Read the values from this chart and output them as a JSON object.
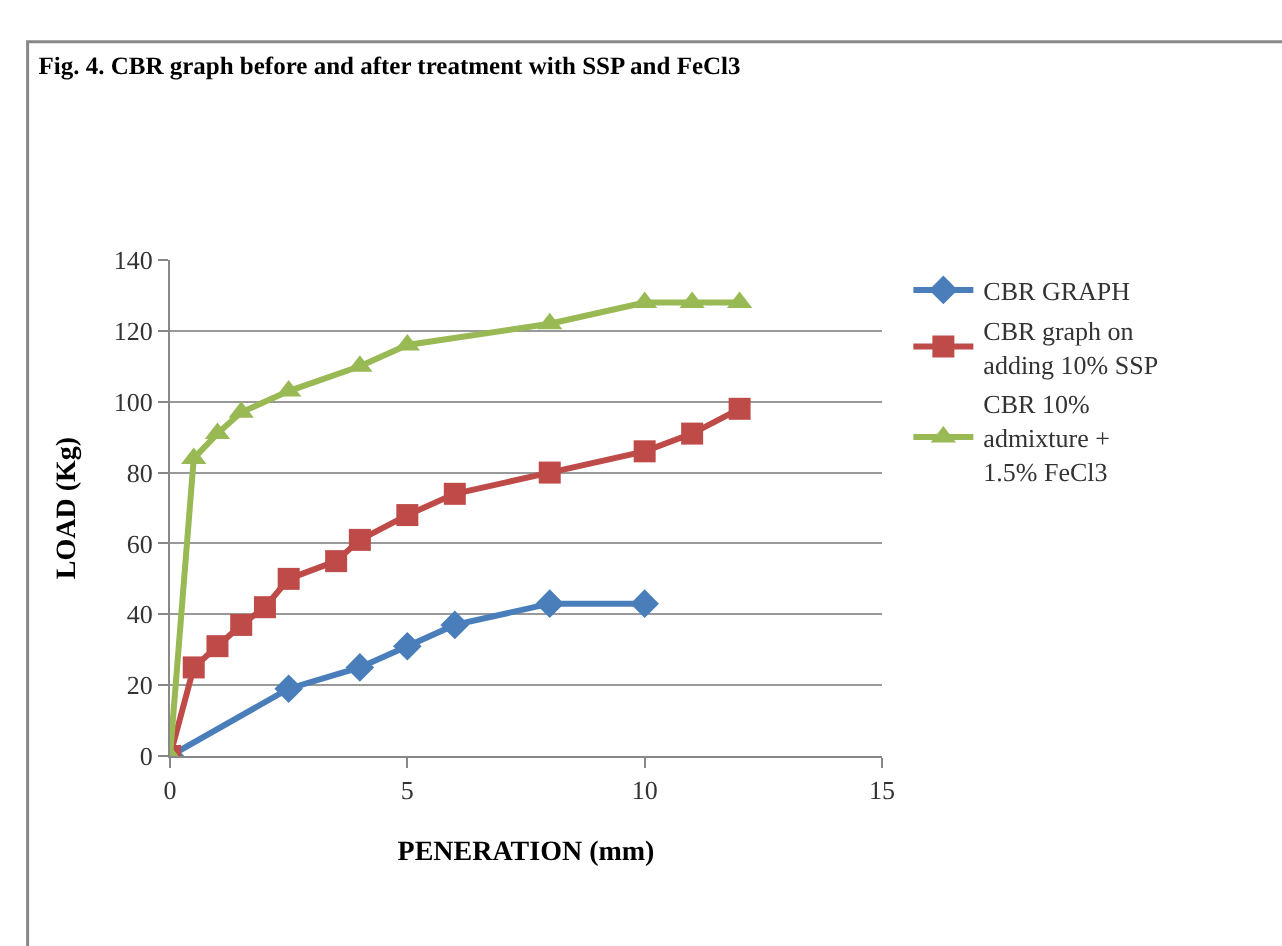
{
  "chart_data": {
    "type": "line",
    "title": "Fig. 4. CBR graph before and after treatment with SSP and FeCl3",
    "xlabel": "PENERATION (mm)",
    "ylabel": "LOAD (Kg)",
    "xlim": [
      0,
      15
    ],
    "xticks": [
      0,
      5,
      10,
      15
    ],
    "ylim": [
      0,
      140
    ],
    "yticks": [
      0,
      20,
      40,
      60,
      80,
      100,
      120,
      140
    ],
    "grid": "y",
    "legend": "right",
    "series": [
      {
        "name": "CBR GRAPH",
        "color": "#4a7ebb",
        "marker": "diamond",
        "x": [
          0,
          2.5,
          4,
          5,
          6,
          8,
          10
        ],
        "values": [
          0,
          19,
          25,
          31,
          37,
          43,
          43
        ]
      },
      {
        "name": "CBR graph on adding 10% SSP",
        "color": "#be4b48",
        "marker": "square",
        "x": [
          0,
          0.5,
          1,
          1.5,
          2,
          2.5,
          3.5,
          4,
          5,
          6,
          8,
          10,
          11,
          12
        ],
        "values": [
          0,
          25,
          31,
          37,
          42,
          50,
          55,
          61,
          68,
          74,
          80,
          86,
          91,
          98
        ]
      },
      {
        "name": "CBR 10% admixture + 1.5% FeCl3",
        "color": "#98b954",
        "marker": "triangle",
        "x": [
          0,
          0.5,
          1,
          1.5,
          2.5,
          4,
          5,
          8,
          10,
          11,
          12
        ],
        "values": [
          0,
          84,
          91,
          97,
          103,
          110,
          116,
          122,
          128,
          128,
          128
        ]
      }
    ]
  }
}
